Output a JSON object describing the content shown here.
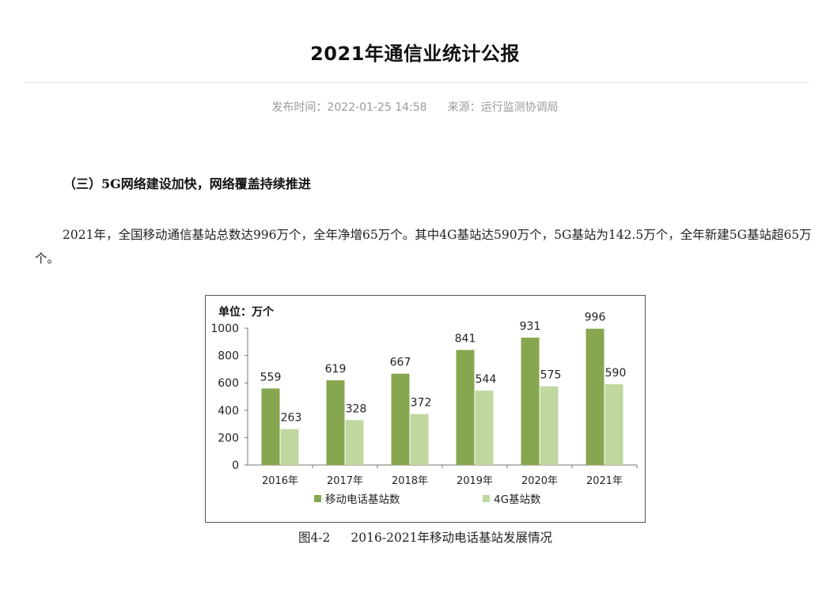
{
  "article": {
    "title": "2021年通信业统计公报",
    "publish_label": "发布时间：",
    "publish_time": "2022-01-25 14:58",
    "source_label": "来源：",
    "source": "运行监测协调局"
  },
  "section": {
    "heading": "（三）5G网络建设加快，网络覆盖持续推进",
    "paragraph": "2021年，全国移动通信基站总数达996万个，全年净增65万个。其中4G基站达590万个，5G基站为142.5万个，全年新建5G基站超65万个。"
  },
  "figure": {
    "caption_number": "图4-2",
    "caption_text": "2016-2021年移动电话基站发展情况"
  },
  "chart_data": {
    "type": "bar",
    "unit_label": "单位：万个",
    "categories": [
      "2016年",
      "2017年",
      "2018年",
      "2019年",
      "2020年",
      "2021年"
    ],
    "series": [
      {
        "name": "移动电话基站数",
        "values": [
          559,
          619,
          667,
          841,
          931,
          996
        ],
        "color": "#86a74f"
      },
      {
        "name": "4G基站数",
        "values": [
          263,
          328,
          372,
          544,
          575,
          590
        ],
        "color": "#c0d8a0"
      }
    ],
    "ylim": [
      0,
      1000
    ],
    "yticks": [
      0,
      200,
      400,
      600,
      800,
      1000
    ],
    "grid": false,
    "legend_position": "bottom"
  }
}
